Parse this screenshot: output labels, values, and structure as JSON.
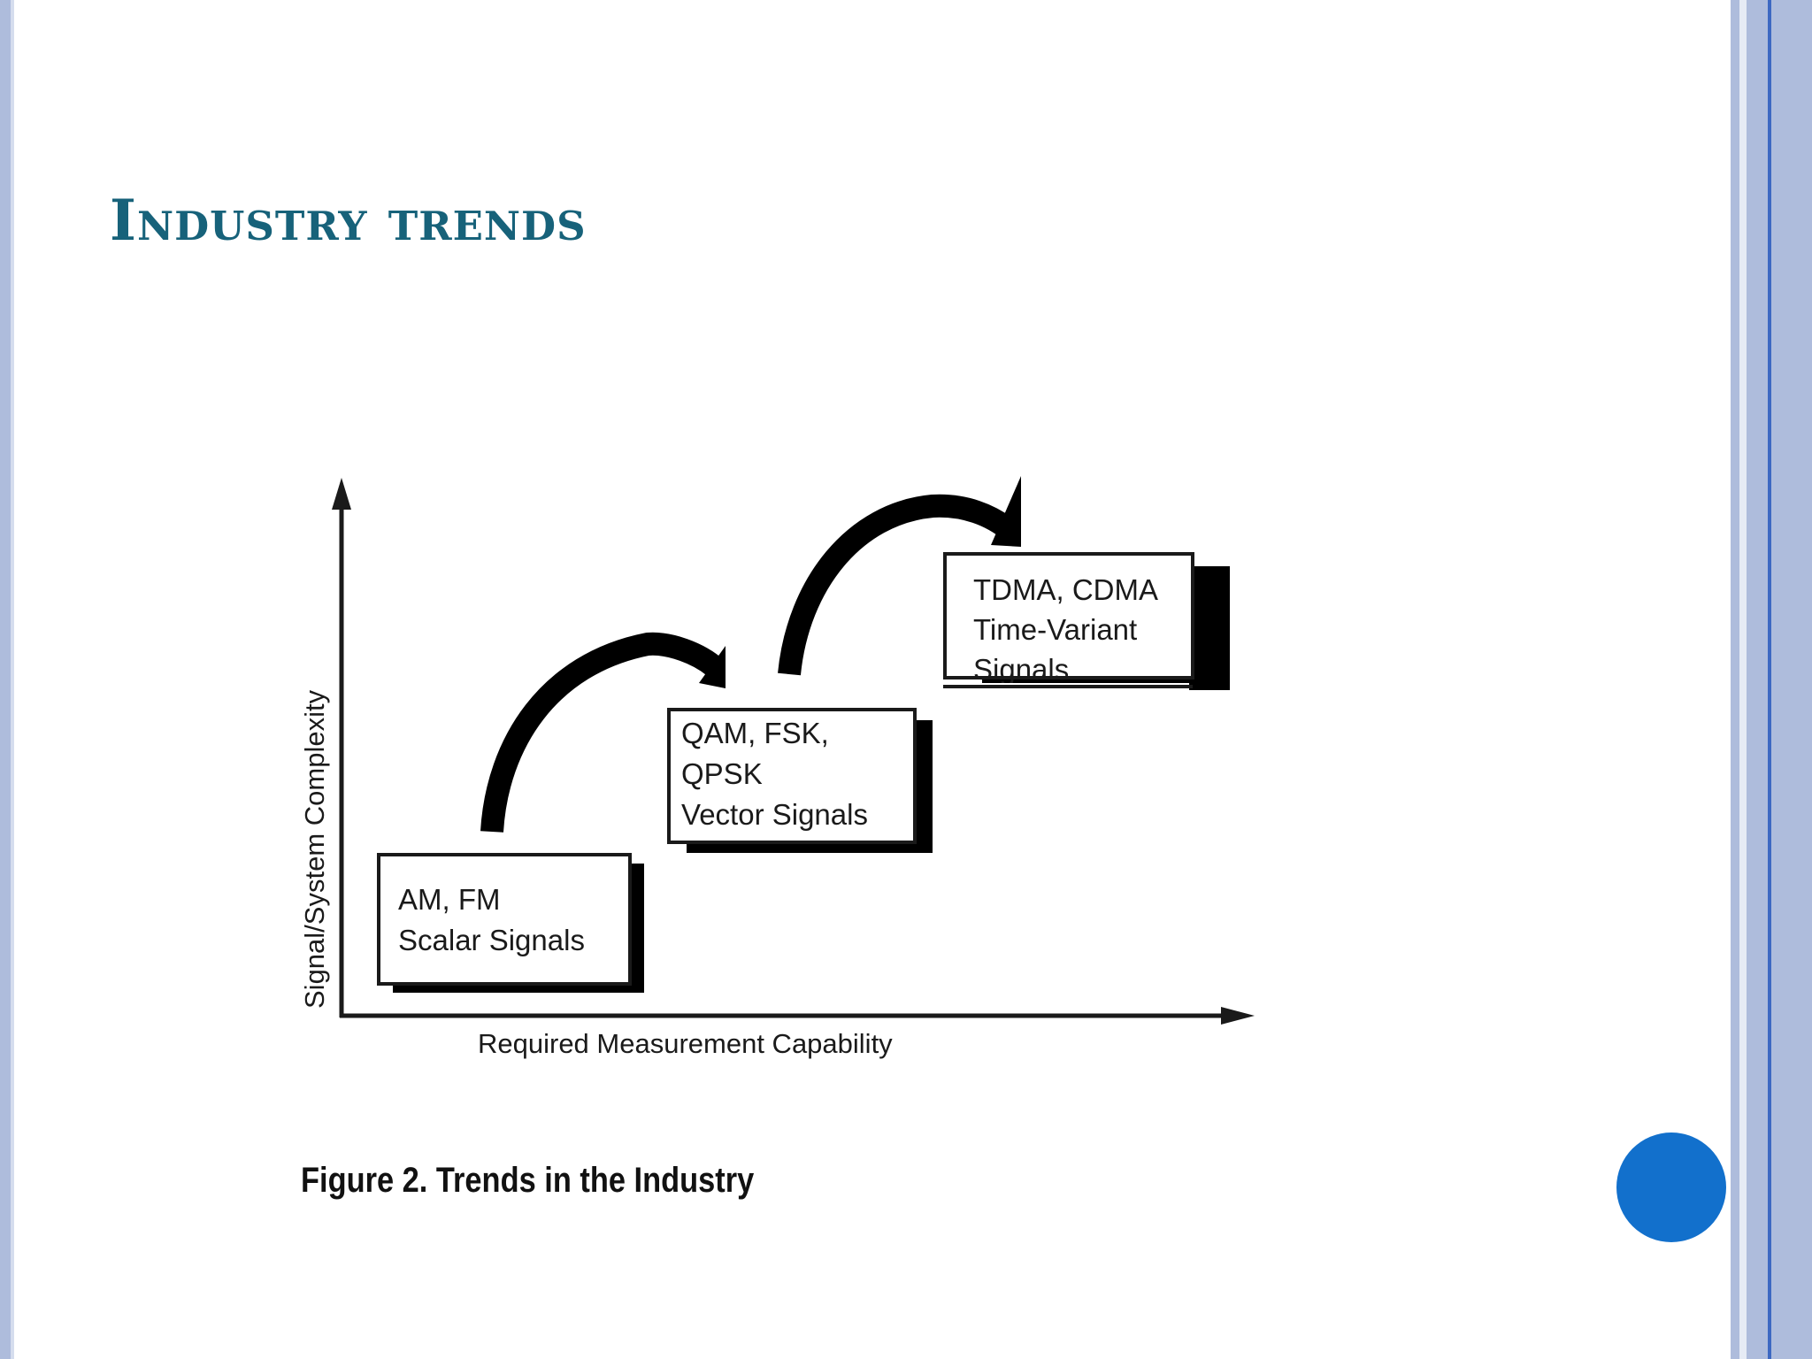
{
  "slide": {
    "title": "Industry trends",
    "caption": "Figure 2. Trends in the Industry"
  },
  "diagram": {
    "y_axis_label": "Signal/System Complexity",
    "x_axis_label": "Required Measurement Capability",
    "boxes": [
      {
        "lines": [
          "AM, FM",
          "Scalar Signals"
        ]
      },
      {
        "lines": [
          "QAM, FSK,",
          "QPSK",
          "Vector Signals"
        ]
      },
      {
        "lines": [
          "TDMA, CDMA",
          "Time-Variant",
          "Signals"
        ]
      }
    ]
  },
  "colors": {
    "title": "#17627a",
    "border": "#aebcdc",
    "nav_circle": "#1270cc"
  }
}
